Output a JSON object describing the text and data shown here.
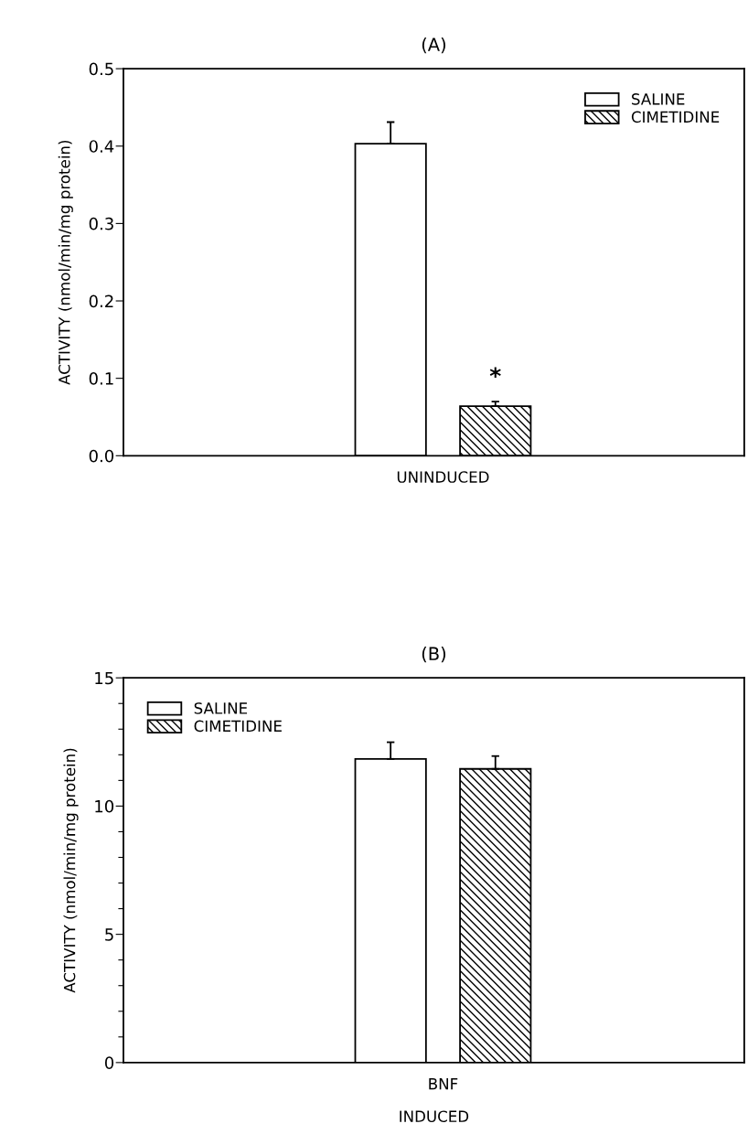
{
  "chart_data": [
    {
      "type": "bar",
      "title": "(A)",
      "ylabel": "ACTIVITY (nmol/min/mg protein)",
      "categories": [
        "UNINDUCED"
      ],
      "ylim": [
        0,
        0.5
      ],
      "yticks": [
        {
          "value": 0,
          "label": "0.0"
        },
        0.1,
        0.2,
        0.3,
        0.4,
        0.5
      ],
      "legend": "top right",
      "grid": false,
      "annotations": [
        "*"
      ],
      "series": [
        {
          "name": "SALINE",
          "color": "#ffffff",
          "values": [
            0.403
          ],
          "errors": [
            0.028
          ]
        },
        {
          "name": "CIMETIDINE",
          "color": "#000000",
          "values": [
            0.064
          ],
          "errors": [
            0.006
          ]
        }
      ]
    },
    {
      "type": "bar",
      "title": "(B)",
      "ylabel": "ACTIVITY (nmol/min/mg protein)",
      "xlabel": "INDUCED",
      "categories": [
        "BNF"
      ],
      "ylim": [
        0,
        15
      ],
      "yticks": [
        0,
        {
          "value": 1,
          "label": null
        },
        {
          "value": 2,
          "label": null
        },
        {
          "value": 3,
          "label": null
        },
        {
          "value": 4,
          "label": null
        },
        5,
        {
          "value": 6,
          "label": null
        },
        {
          "value": 7,
          "label": null
        },
        {
          "value": 8,
          "label": null
        },
        {
          "value": 9,
          "label": null
        },
        10,
        {
          "value": 11,
          "label": null
        },
        {
          "value": 12,
          "label": null
        },
        {
          "value": 13,
          "label": null
        },
        {
          "value": 14,
          "label": null
        },
        15
      ],
      "legend": "top left",
      "grid": false,
      "series": [
        {
          "name": "SALINE",
          "color": "#ffffff",
          "values": [
            11.84
          ],
          "errors": [
            0.65
          ]
        },
        {
          "name": "CIMETIDINE",
          "color": "#000000",
          "values": [
            11.45
          ],
          "errors": [
            0.5
          ]
        }
      ]
    }
  ]
}
